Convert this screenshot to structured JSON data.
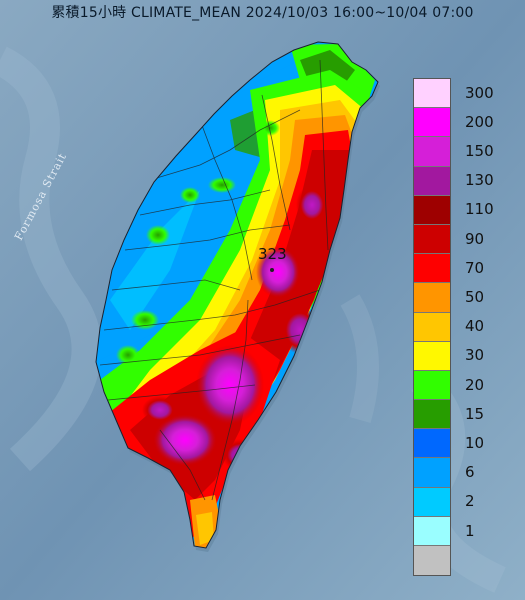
{
  "title": "累積15小時 CLIMATE_MEAN 2024/10/03 16:00~10/04 07:00",
  "strait_label": "Formosa Strait",
  "peak_value": "323",
  "legend": {
    "items": [
      {
        "label": "300",
        "color": "#ffd1ff"
      },
      {
        "label": "200",
        "color": "#ff00ff"
      },
      {
        "label": "150",
        "color": "#d51fd8"
      },
      {
        "label": "130",
        "color": "#a2189f"
      },
      {
        "label": "110",
        "color": "#9e0000"
      },
      {
        "label": "90",
        "color": "#cd0000"
      },
      {
        "label": "70",
        "color": "#fe0000"
      },
      {
        "label": "50",
        "color": "#ff9500"
      },
      {
        "label": "40",
        "color": "#ffc601"
      },
      {
        "label": "30",
        "color": "#fff800"
      },
      {
        "label": "20",
        "color": "#31fe00"
      },
      {
        "label": "15",
        "color": "#279d00"
      },
      {
        "label": "10",
        "color": "#0068fe"
      },
      {
        "label": "6",
        "color": "#00a1ff"
      },
      {
        "label": "2",
        "color": "#00cbff"
      },
      {
        "label": "1",
        "color": "#9afeff"
      },
      {
        "label": "",
        "color": "#c1c1c1"
      }
    ]
  }
}
